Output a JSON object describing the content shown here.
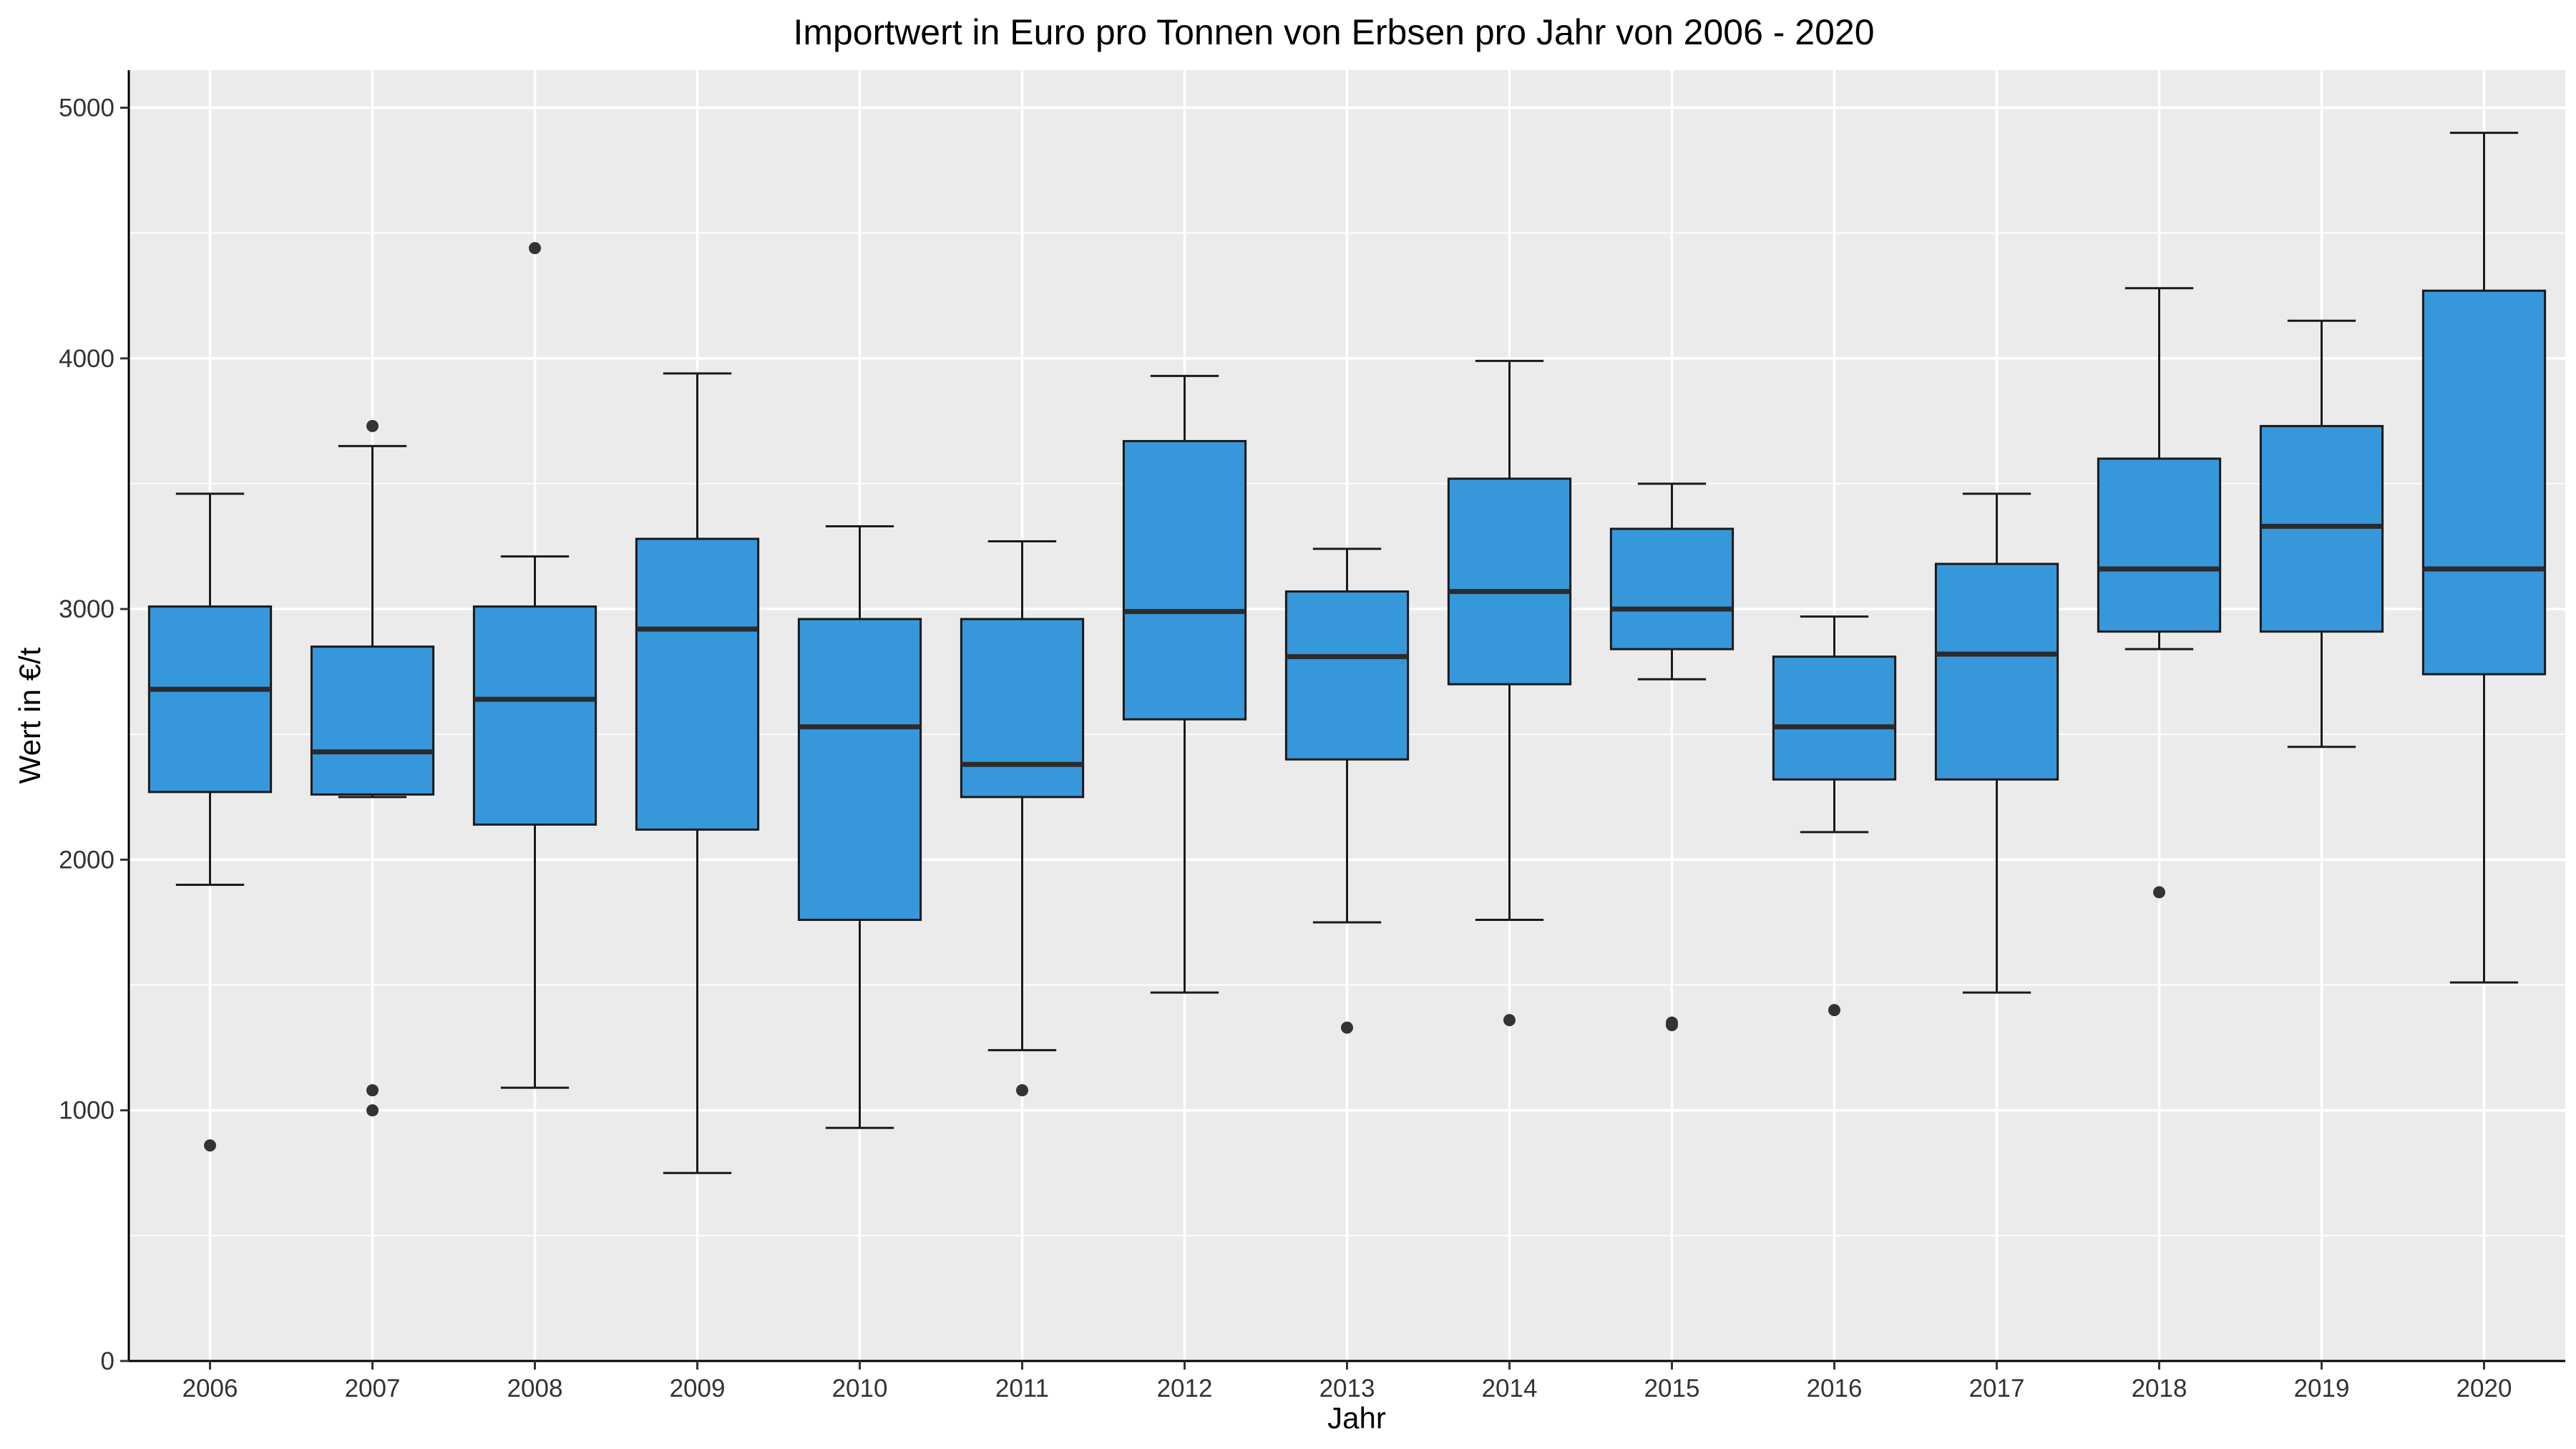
{
  "chart_data": {
    "type": "boxplot",
    "title": "Importwert in Euro pro Tonnen von Erbsen pro Jahr von 2006 - 2020",
    "xlabel": "Jahr",
    "ylabel": "Wert in €/t",
    "ylim": [
      0,
      5150
    ],
    "yticks": [
      0,
      1000,
      2000,
      3000,
      4000,
      5000
    ],
    "grid": true,
    "legend": "none",
    "colors": {
      "box_fill": "#3797DB",
      "box_stroke": "#1a1a1a",
      "median": "#2b2b2b",
      "panel_background": "#EBEBEB",
      "gridline": "#ffffff"
    },
    "categories": [
      "2006",
      "2007",
      "2008",
      "2009",
      "2010",
      "2011",
      "2012",
      "2013",
      "2014",
      "2015",
      "2016",
      "2017",
      "2018",
      "2019",
      "2020"
    ],
    "boxes": [
      {
        "category": "2006",
        "whisker_low": 1900,
        "q1": 2270,
        "median": 2680,
        "q3": 3010,
        "whisker_high": 3460,
        "outliers": [
          860
        ]
      },
      {
        "category": "2007",
        "whisker_low": 2250,
        "q1": 2260,
        "median": 2430,
        "q3": 2850,
        "whisker_high": 3650,
        "outliers": [
          3730,
          1080,
          1000
        ]
      },
      {
        "category": "2008",
        "whisker_low": 1090,
        "q1": 2140,
        "median": 2640,
        "q3": 3010,
        "whisker_high": 3210,
        "outliers": [
          4440
        ]
      },
      {
        "category": "2009",
        "whisker_low": 750,
        "q1": 2120,
        "median": 2920,
        "q3": 3280,
        "whisker_high": 3940,
        "outliers": []
      },
      {
        "category": "2010",
        "whisker_low": 930,
        "q1": 1760,
        "median": 2530,
        "q3": 2960,
        "whisker_high": 3330,
        "outliers": []
      },
      {
        "category": "2011",
        "whisker_low": 1240,
        "q1": 2250,
        "median": 2380,
        "q3": 2960,
        "whisker_high": 3270,
        "outliers": [
          1080
        ]
      },
      {
        "category": "2012",
        "whisker_low": 1470,
        "q1": 2560,
        "median": 2990,
        "q3": 3670,
        "whisker_high": 3930,
        "outliers": []
      },
      {
        "category": "2013",
        "whisker_low": 1750,
        "q1": 2400,
        "median": 2810,
        "q3": 3070,
        "whisker_high": 3240,
        "outliers": [
          1330
        ]
      },
      {
        "category": "2014",
        "whisker_low": 1760,
        "q1": 2700,
        "median": 3070,
        "q3": 3520,
        "whisker_high": 3990,
        "outliers": [
          1360
        ]
      },
      {
        "category": "2015",
        "whisker_low": 2720,
        "q1": 2840,
        "median": 3000,
        "q3": 3320,
        "whisker_high": 3500,
        "outliers": [
          1350,
          1340
        ]
      },
      {
        "category": "2016",
        "whisker_low": 2110,
        "q1": 2320,
        "median": 2530,
        "q3": 2810,
        "whisker_high": 2970,
        "outliers": [
          1400
        ]
      },
      {
        "category": "2017",
        "whisker_low": 1470,
        "q1": 2320,
        "median": 2820,
        "q3": 3180,
        "whisker_high": 3460,
        "outliers": []
      },
      {
        "category": "2018",
        "whisker_low": 2840,
        "q1": 2910,
        "median": 3160,
        "q3": 3600,
        "whisker_high": 4280,
        "outliers": [
          1870
        ]
      },
      {
        "category": "2019",
        "whisker_low": 2450,
        "q1": 2910,
        "median": 3330,
        "q3": 3730,
        "whisker_high": 4150,
        "outliers": []
      },
      {
        "category": "2020",
        "whisker_low": 1510,
        "q1": 2740,
        "median": 3160,
        "q3": 4270,
        "whisker_high": 4900,
        "outliers": []
      }
    ]
  }
}
